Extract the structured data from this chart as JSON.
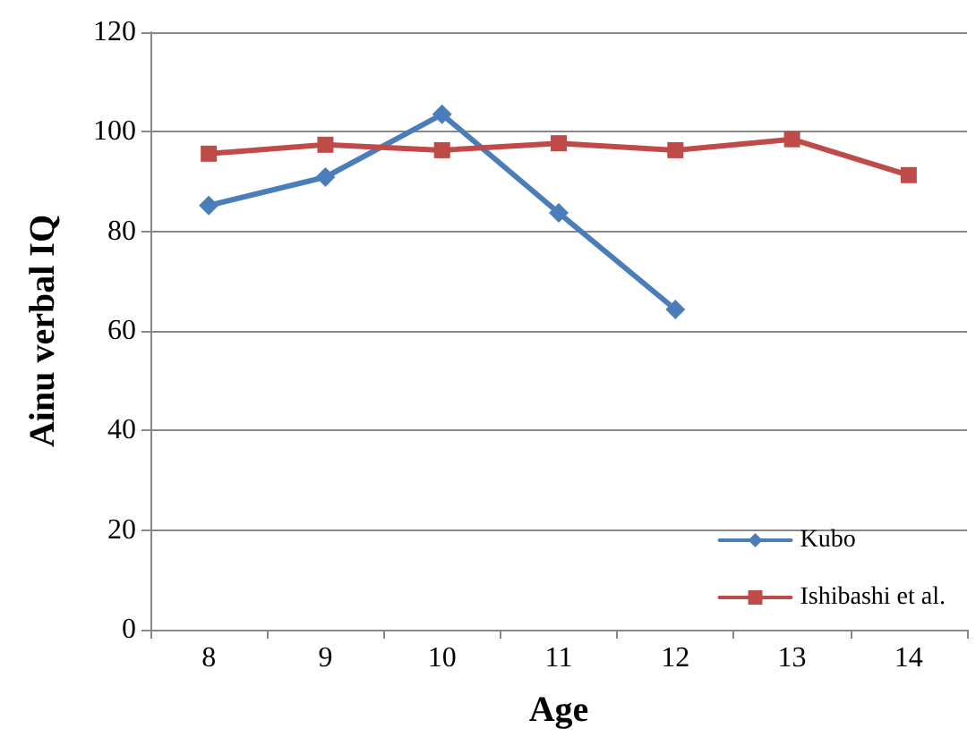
{
  "chart_data": {
    "type": "line",
    "xlabel": "Age",
    "ylabel": "Ainu verbal IQ",
    "categories": [
      "8",
      "9",
      "10",
      "11",
      "12",
      "13",
      "14"
    ],
    "series": [
      {
        "name": "Kubo",
        "color": "#4a7ebb",
        "marker": "diamond",
        "values": [
          85.2,
          90.9,
          103.5,
          83.7,
          64.3,
          null,
          null
        ]
      },
      {
        "name": "Ishibashi et al.",
        "color": "#be4b48",
        "marker": "square",
        "values": [
          95.6,
          97.4,
          96.3,
          97.7,
          96.3,
          98.5,
          91.3
        ]
      }
    ],
    "ylim": [
      0,
      120
    ],
    "yticks": [
      0,
      20,
      40,
      60,
      80,
      100,
      120
    ],
    "grid": "y",
    "legend": "bottom right"
  }
}
